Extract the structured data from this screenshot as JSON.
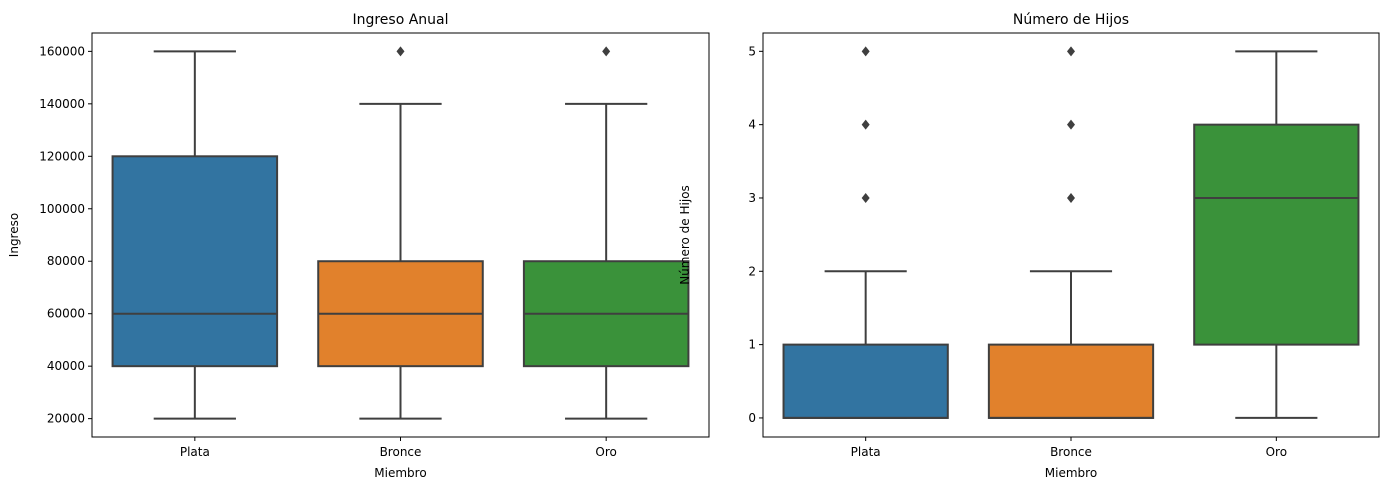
{
  "chart_data": [
    {
      "type": "box",
      "title": "Ingreso Anual",
      "xlabel": "Miembro",
      "ylabel": "Ingreso",
      "categories": [
        "Plata",
        "Bronce",
        "Oro"
      ],
      "ylim": [
        13000,
        167000
      ],
      "yticks": [
        20000,
        40000,
        60000,
        80000,
        100000,
        120000,
        140000,
        160000
      ],
      "boxes": [
        {
          "whislo": 20000,
          "q1": 40000,
          "med": 60000,
          "q3": 120000,
          "whishi": 160000,
          "fliers": []
        },
        {
          "whislo": 20000,
          "q1": 40000,
          "med": 60000,
          "q3": 80000,
          "whishi": 140000,
          "fliers": [
            160000
          ]
        },
        {
          "whislo": 20000,
          "q1": 40000,
          "med": 60000,
          "q3": 80000,
          "whishi": 140000,
          "fliers": [
            160000
          ]
        }
      ]
    },
    {
      "type": "box",
      "title": "Número de Hijos",
      "xlabel": "Miembro",
      "ylabel": "Número de Hijos",
      "categories": [
        "Plata",
        "Bronce",
        "Oro"
      ],
      "ylim": [
        -0.26,
        5.25
      ],
      "yticks": [
        0,
        1,
        2,
        3,
        4,
        5
      ],
      "boxes": [
        {
          "whislo": 0,
          "q1": 0,
          "med": 0,
          "q3": 1,
          "whishi": 2,
          "fliers": [
            3,
            4,
            5
          ]
        },
        {
          "whislo": 0,
          "q1": 0,
          "med": 0,
          "q3": 1,
          "whishi": 2,
          "fliers": [
            3,
            4,
            5
          ]
        },
        {
          "whislo": 0,
          "q1": 1,
          "med": 3,
          "q3": 4,
          "whishi": 5,
          "fliers": []
        }
      ]
    }
  ],
  "colors": {
    "palette": [
      "#3274a1",
      "#e1812c",
      "#3a923a"
    ],
    "line": "#3f3f3f"
  }
}
